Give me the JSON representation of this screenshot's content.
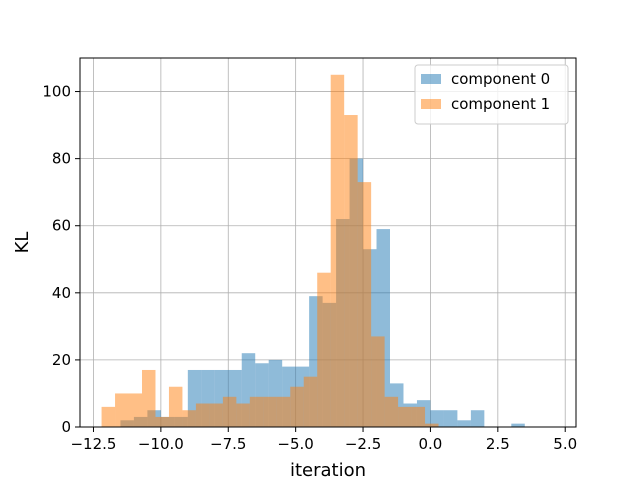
{
  "chart_data": {
    "type": "bar",
    "subtype": "histogram",
    "xlabel": "iteration",
    "ylabel": "KL",
    "xlim": [
      -13.0,
      5.4
    ],
    "ylim": [
      0,
      110
    ],
    "xticks": [
      -12.5,
      -10.0,
      -7.5,
      -5.0,
      -2.5,
      0.0,
      2.5,
      5.0
    ],
    "xtick_labels": [
      "−12.5",
      "−10.0",
      "−7.5",
      "−5.0",
      "−2.5",
      "0.0",
      "2.5",
      "5.0"
    ],
    "yticks": [
      0,
      20,
      40,
      60,
      80,
      100
    ],
    "ytick_labels": [
      "0",
      "20",
      "40",
      "60",
      "80",
      "100"
    ],
    "grid": true,
    "legend_position": "top-right",
    "series": [
      {
        "name": "component 0",
        "color": "#1f77b4",
        "alpha": 0.5,
        "bin_edges": [
          -11.5,
          -11.0,
          -10.5,
          -10.0,
          -9.5,
          -9.0,
          -8.5,
          -8.0,
          -7.5,
          -7.0,
          -6.5,
          -6.0,
          -5.5,
          -5.0,
          -4.5,
          -4.0,
          -3.5,
          -3.0,
          -2.5,
          -2.0,
          -1.5,
          -1.0,
          -0.5,
          0.0,
          0.5,
          1.0,
          1.5,
          2.0,
          2.5,
          3.0,
          3.5,
          4.0,
          4.5
        ],
        "counts": [
          2,
          3,
          5,
          3,
          3,
          17,
          17,
          17,
          17,
          22,
          19,
          20,
          18,
          18,
          39,
          37,
          62,
          80,
          53,
          59,
          13,
          7,
          8,
          5,
          5,
          2,
          5,
          0,
          0,
          1,
          0,
          0
        ]
      },
      {
        "name": "component 1",
        "color": "#ff7f0e",
        "alpha": 0.5,
        "bin_edges": [
          -12.2,
          -11.7,
          -11.2,
          -10.7,
          -10.2,
          -9.7,
          -9.2,
          -8.7,
          -8.2,
          -7.7,
          -7.2,
          -6.7,
          -6.2,
          -5.7,
          -5.2,
          -4.7,
          -4.2,
          -3.7,
          -3.2,
          -2.7,
          -2.2,
          -1.7,
          -1.2,
          -0.7,
          -0.2,
          0.3,
          0.8,
          1.3,
          1.8,
          2.3
        ],
        "counts": [
          6,
          10,
          10,
          17,
          3,
          12,
          5,
          7,
          7,
          9,
          7,
          9,
          9,
          9,
          12,
          15,
          46,
          105,
          93,
          73,
          27,
          9,
          6,
          6,
          1,
          0,
          0,
          0,
          0
        ]
      }
    ]
  }
}
